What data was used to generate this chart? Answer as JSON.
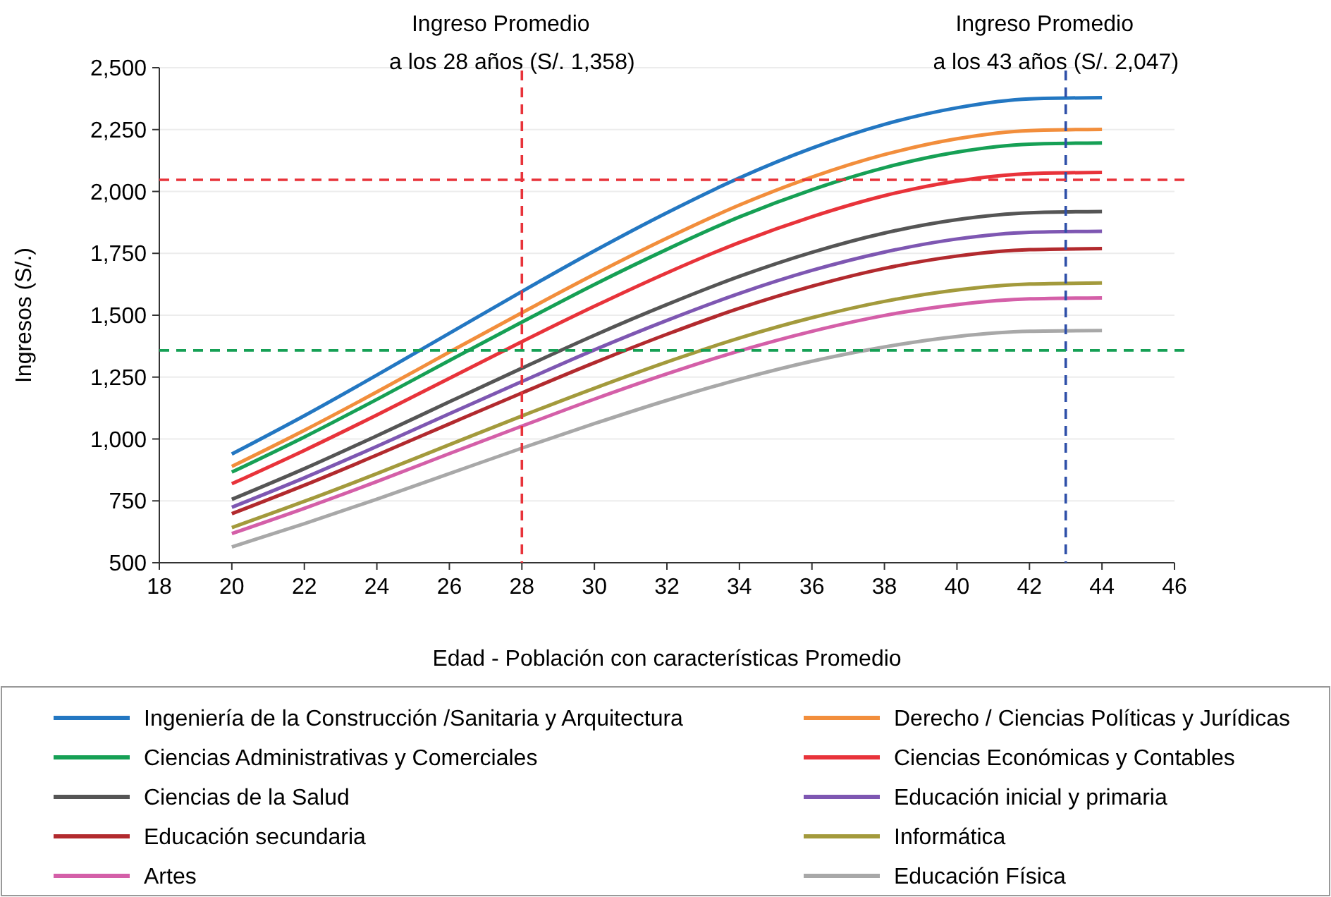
{
  "chart_data": {
    "type": "line",
    "xlabel": "Edad - Población con características Promedio",
    "ylabel": "Ingresos (S/.)",
    "x": [
      20,
      22,
      24,
      26,
      28,
      30,
      32,
      34,
      36,
      38,
      40,
      42,
      44
    ],
    "xlim": [
      18,
      46
    ],
    "xticks": [
      18,
      20,
      22,
      24,
      26,
      28,
      30,
      32,
      34,
      36,
      38,
      40,
      42,
      44,
      46
    ],
    "ylim": [
      500,
      2500
    ],
    "yticks": [
      {
        "value": 500,
        "label": "500"
      },
      {
        "value": 750,
        "label": "750"
      },
      {
        "value": 1000,
        "label": "1,000"
      },
      {
        "value": 1250,
        "label": "1,250"
      },
      {
        "value": 1500,
        "label": "1,500"
      },
      {
        "value": 1750,
        "label": "1,750"
      },
      {
        "value": 2000,
        "label": "2,000"
      },
      {
        "value": 2250,
        "label": "2,250"
      },
      {
        "value": 2500,
        "label": "2,500"
      }
    ],
    "grid": "y",
    "legend": "bottom",
    "series": [
      {
        "name": "Ingeniería de la Construcción /Sanitaria y Arquitectura",
        "color": "#2377c2",
        "values": [
          939,
          1094,
          1258,
          1427,
          1596,
          1760,
          1914,
          2055,
          2175,
          2271,
          2338,
          2374,
          2379
        ]
      },
      {
        "name": "Derecho / Ciencias Políticas y Jurídicas",
        "color": "#f28e3c",
        "values": [
          889,
          1035,
          1190,
          1351,
          1510,
          1665,
          1811,
          1945,
          2058,
          2149,
          2213,
          2246,
          2251
        ]
      },
      {
        "name": "Ciencias Administrativas y Comerciales",
        "color": "#16a055",
        "values": [
          866,
          1008,
          1160,
          1317,
          1472,
          1624,
          1766,
          1897,
          2007,
          2096,
          2159,
          2191,
          2196
        ]
      },
      {
        "name": "Ciencias Económicas y Contables",
        "color": "#e8333a",
        "values": [
          819,
          954,
          1097,
          1245,
          1393,
          1536,
          1671,
          1794,
          1898,
          1983,
          2042,
          2072,
          2077
        ]
      },
      {
        "name": "Ciencias de la Salud",
        "color": "#555555",
        "values": [
          756,
          880,
          1013,
          1150,
          1286,
          1419,
          1543,
          1657,
          1754,
          1832,
          1886,
          1914,
          1919
        ]
      },
      {
        "name": "Educación inicial y primaria",
        "color": "#7e57b2",
        "values": [
          724,
          843,
          970,
          1102,
          1232,
          1360,
          1479,
          1588,
          1681,
          1755,
          1808,
          1835,
          1839
        ]
      },
      {
        "name": "Educación secundaria",
        "color": "#b22a2e",
        "values": [
          698,
          813,
          935,
          1061,
          1186,
          1308,
          1423,
          1528,
          1617,
          1689,
          1739,
          1765,
          1769
        ]
      },
      {
        "name": "Informática",
        "color": "#a39a3c",
        "values": [
          642,
          748,
          860,
          977,
          1093,
          1205,
          1311,
          1408,
          1490,
          1556,
          1602,
          1626,
          1630
        ]
      },
      {
        "name": "Artes",
        "color": "#d45fa8",
        "values": [
          618,
          720,
          828,
          941,
          1052,
          1161,
          1263,
          1356,
          1435,
          1499,
          1543,
          1566,
          1570
        ]
      },
      {
        "name": "Educación Física",
        "color": "#a8a8a8",
        "values": [
          564,
          658,
          757,
          860,
          963,
          1062,
          1156,
          1241,
          1314,
          1372,
          1414,
          1435,
          1438
        ]
      }
    ],
    "ref_lines": [
      {
        "axis": "x",
        "value": 28,
        "label": "Ingreso Promedio\na los 28 años (S/. 1,358)",
        "color": "#e8333a",
        "line_style": "dashed"
      },
      {
        "axis": "x",
        "value": 43,
        "label": "Ingreso Promedio\na los 43 años (S/. 2,047)",
        "color": "#2e4fa8",
        "line_style": "dashed"
      },
      {
        "axis": "y",
        "value": 2047,
        "color": "#e8333a",
        "line_style": "dashed"
      },
      {
        "axis": "y",
        "value": 1358,
        "color": "#16a055",
        "line_style": "dashed"
      }
    ]
  }
}
